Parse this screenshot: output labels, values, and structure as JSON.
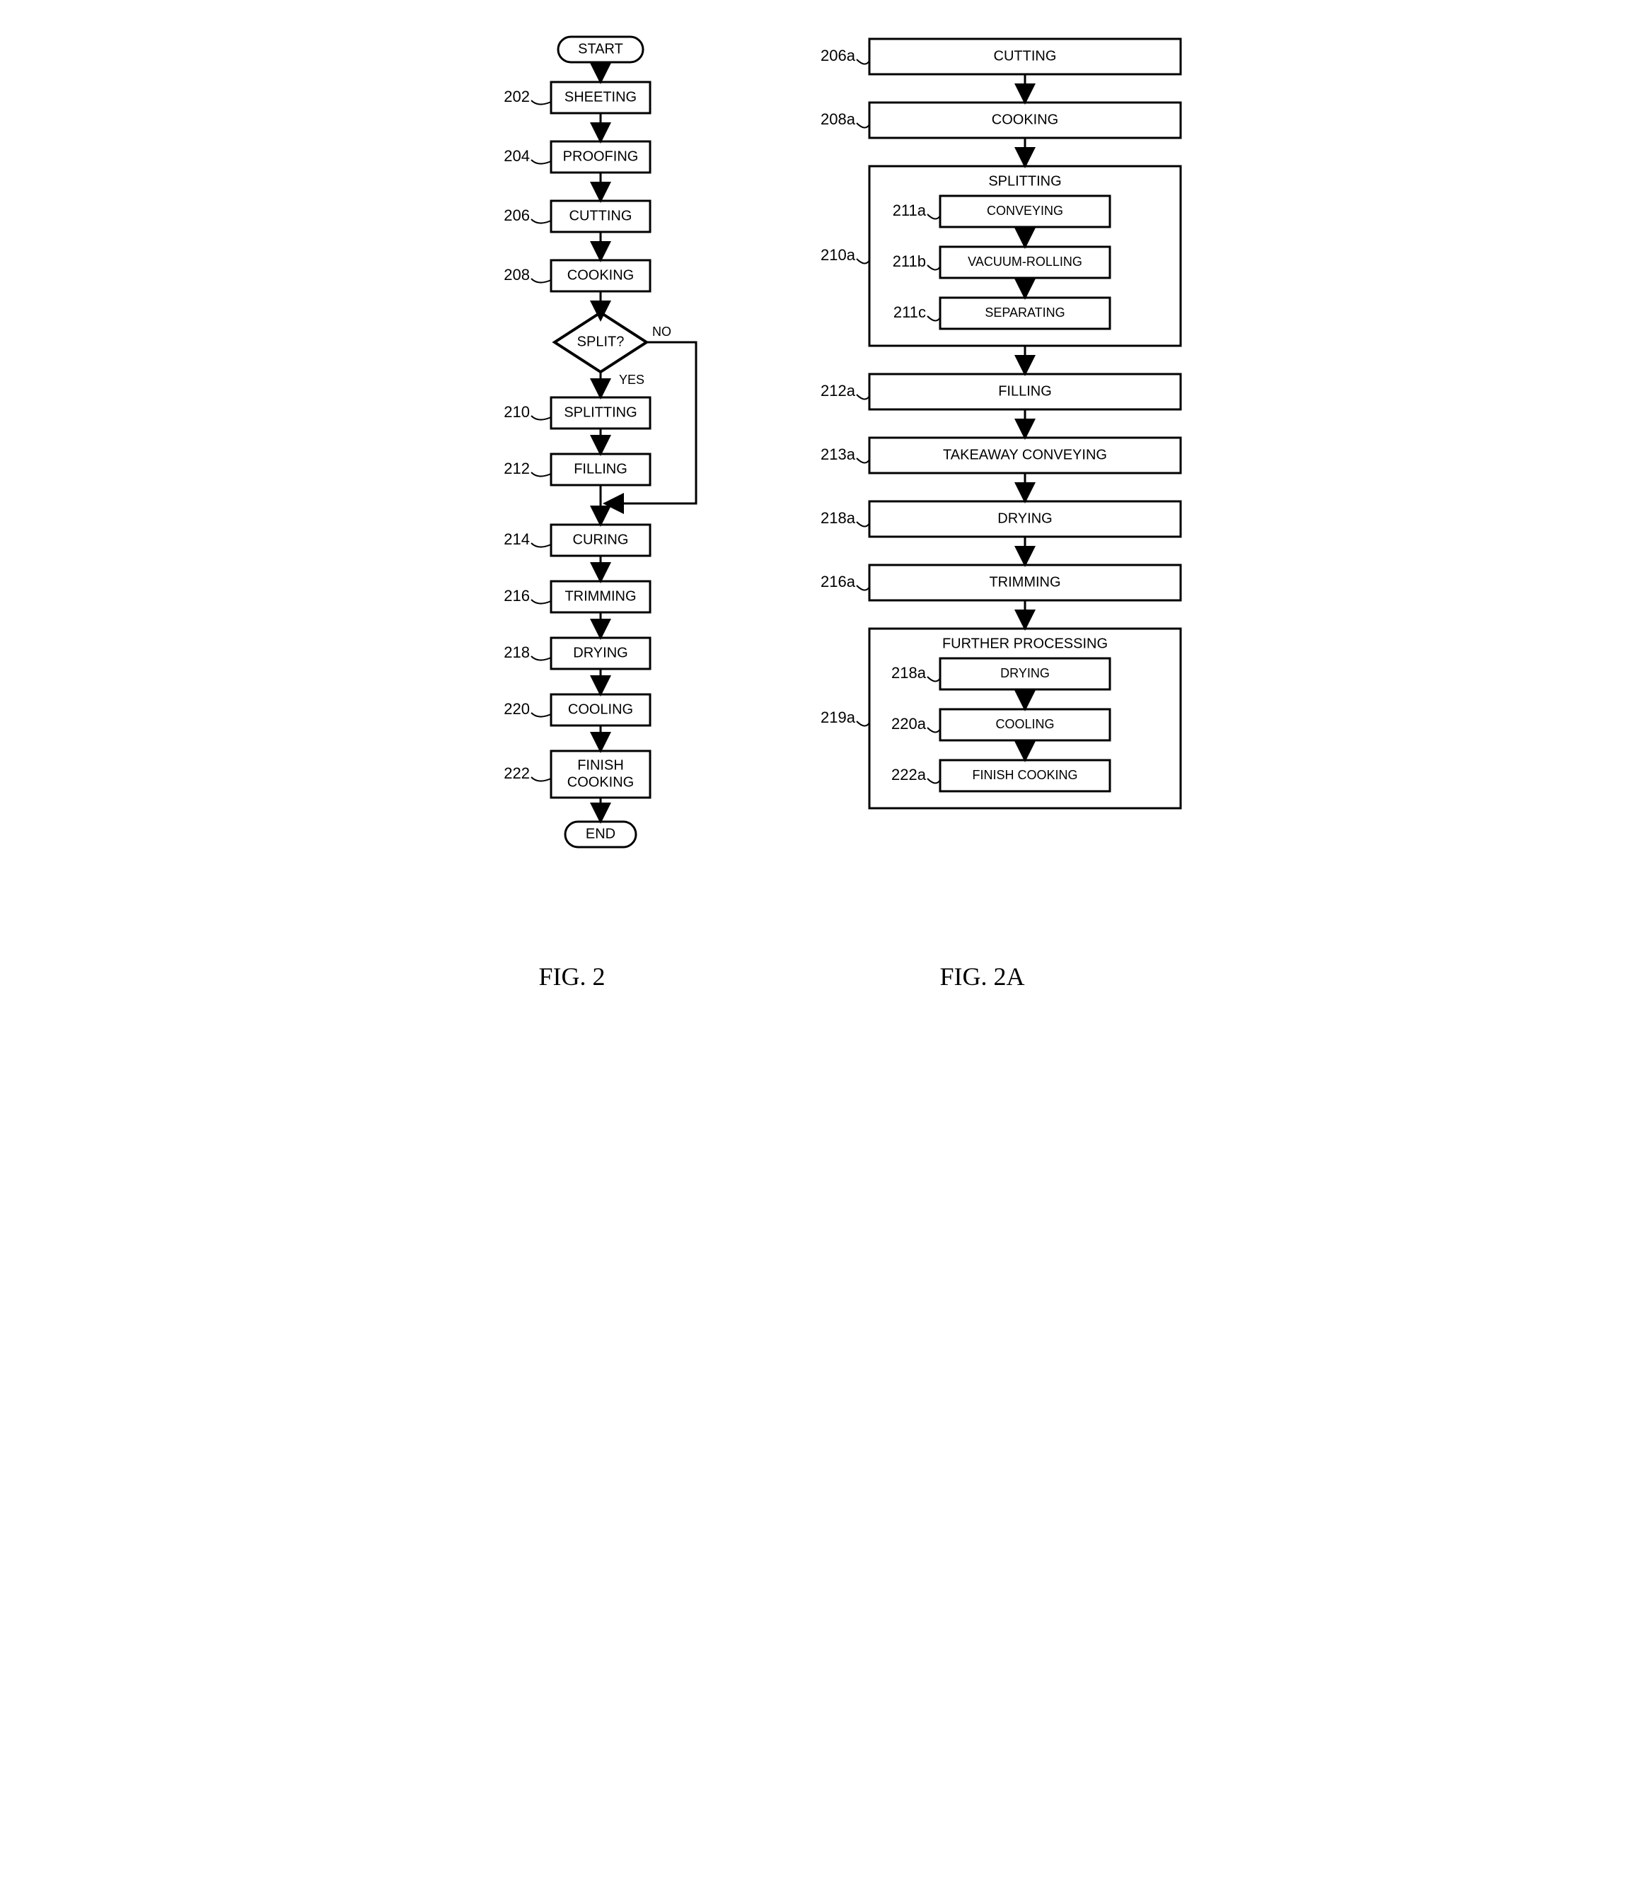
{
  "stroke": "#000000",
  "bg": "#ffffff",
  "stroke_width": 3,
  "box_font_size": 20,
  "ref_font_size": 22,
  "fig_font_size": 36,
  "fig2": {
    "caption": "FIG. 2",
    "start": "START",
    "end": "END",
    "decision": {
      "label": "SPLIT?",
      "yes": "YES",
      "no": "NO"
    },
    "steps": [
      {
        "ref": "202",
        "label": "SHEETING"
      },
      {
        "ref": "204",
        "label": "PROOFING"
      },
      {
        "ref": "206",
        "label": "CUTTING"
      },
      {
        "ref": "208",
        "label": "COOKING"
      },
      {
        "ref": "210",
        "label": "SPLITTING"
      },
      {
        "ref": "212",
        "label": "FILLING"
      },
      {
        "ref": "214",
        "label": "CURING"
      },
      {
        "ref": "216",
        "label": "TRIMMING"
      },
      {
        "ref": "218",
        "label": "DRYING"
      },
      {
        "ref": "220",
        "label": "COOLING"
      },
      {
        "ref": "222",
        "label": [
          "FINISH",
          "COOKING"
        ]
      }
    ]
  },
  "fig2a": {
    "caption": "FIG. 2A",
    "steps": [
      {
        "ref": "206a",
        "label": "CUTTING"
      },
      {
        "ref": "208a",
        "label": "COOKING"
      },
      {
        "ref": "210a",
        "label": "SPLITTING",
        "children": [
          {
            "ref": "211a",
            "label": "CONVEYING"
          },
          {
            "ref": "211b",
            "label": "VACUUM-ROLLING"
          },
          {
            "ref": "211c",
            "label": "SEPARATING"
          }
        ]
      },
      {
        "ref": "212a",
        "label": "FILLING"
      },
      {
        "ref": "213a",
        "label": "TAKEAWAY CONVEYING"
      },
      {
        "ref": "218a",
        "label": "DRYING"
      },
      {
        "ref": "216a",
        "label": "TRIMMING"
      },
      {
        "ref": "219a",
        "label": "FURTHER PROCESSING",
        "children": [
          {
            "ref": "218a",
            "label": "DRYING"
          },
          {
            "ref": "220a",
            "label": "COOLING"
          },
          {
            "ref": "222a",
            "label": "FINISH COOKING"
          }
        ]
      }
    ]
  }
}
